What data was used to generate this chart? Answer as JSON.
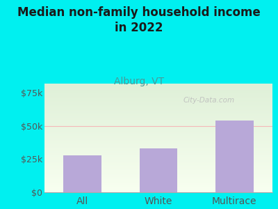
{
  "title": "Median non-family household income\nin 2022",
  "subtitle": "Alburg, VT",
  "categories": [
    "All",
    "White",
    "Multirace"
  ],
  "values": [
    28000,
    33000,
    54000
  ],
  "bar_color": "#b8a8d8",
  "background_outer": "#00f0f0",
  "background_inner_top": "#dff0d8",
  "background_inner_bottom": "#f8fff0",
  "title_color": "#1a1a1a",
  "subtitle_color": "#4a9a9a",
  "tick_color": "#555555",
  "grid_color": "#f5b8b8",
  "yticks": [
    0,
    25000,
    50000,
    75000
  ],
  "ytick_labels": [
    "$0",
    "$25k",
    "$50k",
    "$75k"
  ],
  "ylim": [
    0,
    82000
  ],
  "title_fontsize": 12,
  "subtitle_fontsize": 10,
  "tick_fontsize": 9,
  "xlabel_fontsize": 10,
  "watermark": "City-Data.com"
}
